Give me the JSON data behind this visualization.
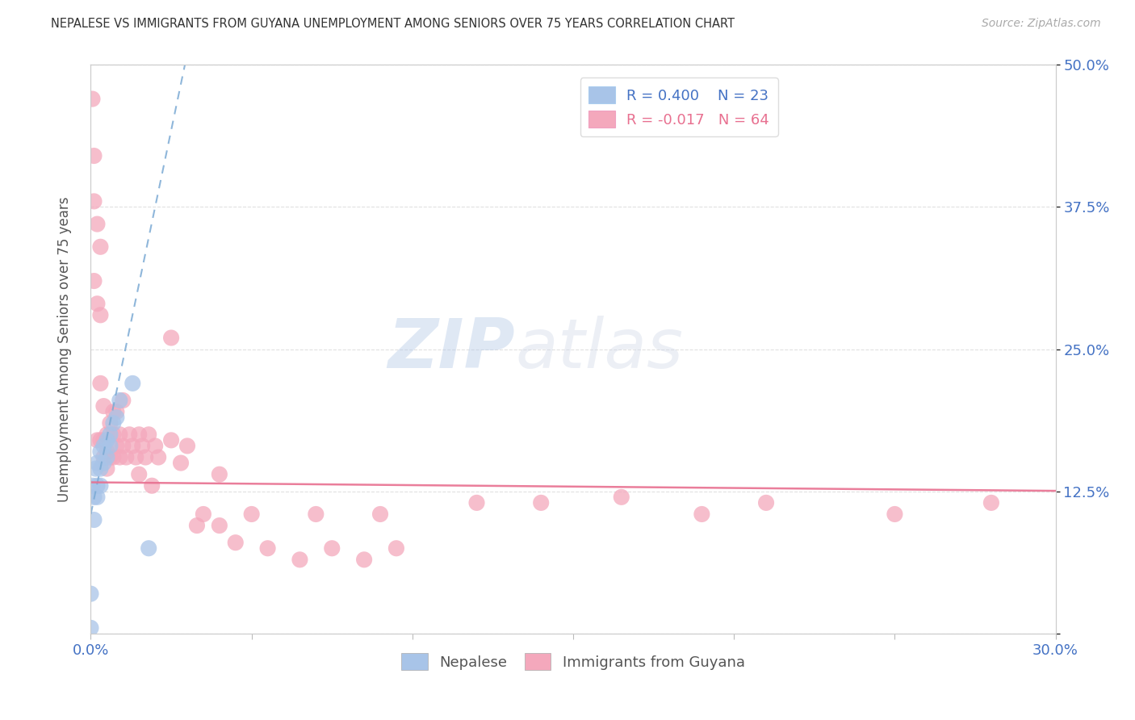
{
  "title": "NEPALESE VS IMMIGRANTS FROM GUYANA UNEMPLOYMENT AMONG SENIORS OVER 75 YEARS CORRELATION CHART",
  "source": "Source: ZipAtlas.com",
  "ylabel": "Unemployment Among Seniors over 75 years",
  "xlim": [
    0.0,
    0.3
  ],
  "ylim": [
    0.0,
    0.5
  ],
  "color_nepalese": "#a8c4e8",
  "color_guyana": "#f4a8bc",
  "color_line_nepalese": "#7baad4",
  "color_line_guyana": "#e87090",
  "nepalese_x": [
    0.0,
    0.0,
    0.0005,
    0.001,
    0.001,
    0.0015,
    0.002,
    0.002,
    0.002,
    0.003,
    0.003,
    0.003,
    0.004,
    0.004,
    0.005,
    0.005,
    0.006,
    0.006,
    0.007,
    0.008,
    0.009,
    0.013,
    0.018
  ],
  "nepalese_y": [
    0.035,
    0.005,
    0.13,
    0.12,
    0.1,
    0.145,
    0.15,
    0.13,
    0.12,
    0.16,
    0.145,
    0.13,
    0.165,
    0.15,
    0.17,
    0.155,
    0.175,
    0.165,
    0.185,
    0.19,
    0.205,
    0.22,
    0.075
  ],
  "guyana_x": [
    0.0005,
    0.001,
    0.001,
    0.001,
    0.002,
    0.002,
    0.002,
    0.003,
    0.003,
    0.003,
    0.003,
    0.004,
    0.004,
    0.004,
    0.005,
    0.005,
    0.005,
    0.006,
    0.006,
    0.007,
    0.007,
    0.007,
    0.008,
    0.008,
    0.009,
    0.009,
    0.01,
    0.01,
    0.011,
    0.012,
    0.013,
    0.014,
    0.015,
    0.015,
    0.016,
    0.017,
    0.018,
    0.019,
    0.02,
    0.021,
    0.025,
    0.025,
    0.028,
    0.03,
    0.033,
    0.035,
    0.04,
    0.04,
    0.045,
    0.05,
    0.055,
    0.065,
    0.07,
    0.075,
    0.085,
    0.09,
    0.095,
    0.12,
    0.14,
    0.165,
    0.19,
    0.21,
    0.25,
    0.28
  ],
  "guyana_y": [
    0.47,
    0.42,
    0.38,
    0.31,
    0.36,
    0.29,
    0.17,
    0.34,
    0.28,
    0.22,
    0.17,
    0.2,
    0.17,
    0.155,
    0.175,
    0.16,
    0.145,
    0.185,
    0.155,
    0.195,
    0.175,
    0.155,
    0.195,
    0.165,
    0.175,
    0.155,
    0.205,
    0.165,
    0.155,
    0.175,
    0.165,
    0.155,
    0.175,
    0.14,
    0.165,
    0.155,
    0.175,
    0.13,
    0.165,
    0.155,
    0.26,
    0.17,
    0.15,
    0.165,
    0.095,
    0.105,
    0.14,
    0.095,
    0.08,
    0.105,
    0.075,
    0.065,
    0.105,
    0.075,
    0.065,
    0.105,
    0.075,
    0.115,
    0.115,
    0.12,
    0.105,
    0.115,
    0.105,
    0.115
  ],
  "nep_slope": 13.5,
  "nep_intercept": 0.105,
  "guy_slope": -0.025,
  "guy_intercept": 0.133,
  "watermark_zip": "ZIP",
  "watermark_atlas": "atlas",
  "background_color": "#ffffff",
  "grid_color": "#dddddd",
  "tick_color": "#4472c4",
  "label_color": "#555555",
  "title_color": "#333333",
  "source_color": "#aaaaaa"
}
